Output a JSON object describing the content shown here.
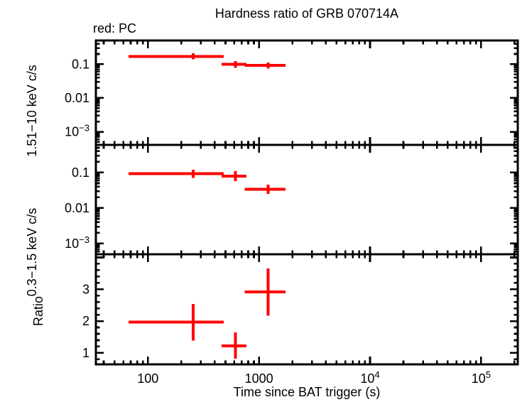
{
  "chart_data": {
    "type": "errorbar-multi-panel",
    "title": "Hardness ratio of GRB 070714A",
    "legend": "red: PC",
    "xlabel": "Time since BAT trigger (s)",
    "xscale": "log",
    "xlim": [
      34,
      214000
    ],
    "xticks": [
      {
        "value": 100,
        "label": "100"
      },
      {
        "value": 1000,
        "label": "1000"
      },
      {
        "value": 10000,
        "label": "10^4"
      },
      {
        "value": 100000,
        "label": "10^5"
      }
    ],
    "colors": {
      "background": "#ffffff",
      "axis": "#000000",
      "data": "#ff0000"
    },
    "panels": [
      {
        "ylabel": "1.51−10 keV c/s",
        "yscale": "log",
        "ylim": [
          0.00041,
          0.5
        ],
        "yticks": [
          {
            "value": 0.1,
            "label": "0.1"
          },
          {
            "value": 0.01,
            "label": "0.01"
          },
          {
            "value": 0.001,
            "label": "10^-3"
          }
        ],
        "points": [
          {
            "x": 255,
            "xlo": 67,
            "xhi": 480,
            "y": 0.17,
            "ylo": 0.14,
            "yhi": 0.21
          },
          {
            "x": 615,
            "xlo": 460,
            "xhi": 770,
            "y": 0.098,
            "ylo": 0.078,
            "yhi": 0.123
          },
          {
            "x": 1210,
            "xlo": 745,
            "xhi": 1730,
            "y": 0.091,
            "ylo": 0.074,
            "yhi": 0.112
          }
        ]
      },
      {
        "ylabel": "0.3−1.5 keV c/s",
        "yscale": "log",
        "ylim": [
          0.0005,
          0.6
        ],
        "yticks": [
          {
            "value": 0.1,
            "label": "0.1"
          },
          {
            "value": 0.01,
            "label": "0.01"
          },
          {
            "value": 0.001,
            "label": "10^-3"
          }
        ],
        "points": [
          {
            "x": 255,
            "xlo": 67,
            "xhi": 480,
            "y": 0.092,
            "ylo": 0.071,
            "yhi": 0.119
          },
          {
            "x": 615,
            "xlo": 460,
            "xhi": 770,
            "y": 0.079,
            "ylo": 0.057,
            "yhi": 0.11
          },
          {
            "x": 1210,
            "xlo": 745,
            "xhi": 1730,
            "y": 0.034,
            "ylo": 0.025,
            "yhi": 0.046
          }
        ]
      },
      {
        "ylabel": "Ratio",
        "yscale": "linear",
        "ylim": [
          0.64,
          4.1
        ],
        "yticks": [
          {
            "value": 1,
            "label": "1"
          },
          {
            "value": 2,
            "label": "2"
          },
          {
            "value": 3,
            "label": "3"
          }
        ],
        "points": [
          {
            "x": 255,
            "xlo": 67,
            "xhi": 480,
            "y": 1.97,
            "ylo": 1.39,
            "yhi": 2.54
          },
          {
            "x": 615,
            "xlo": 460,
            "xhi": 770,
            "y": 1.22,
            "ylo": 0.82,
            "yhi": 1.65
          },
          {
            "x": 1210,
            "xlo": 745,
            "xhi": 1730,
            "y": 2.92,
            "ylo": 2.17,
            "yhi": 3.65
          }
        ]
      }
    ]
  }
}
